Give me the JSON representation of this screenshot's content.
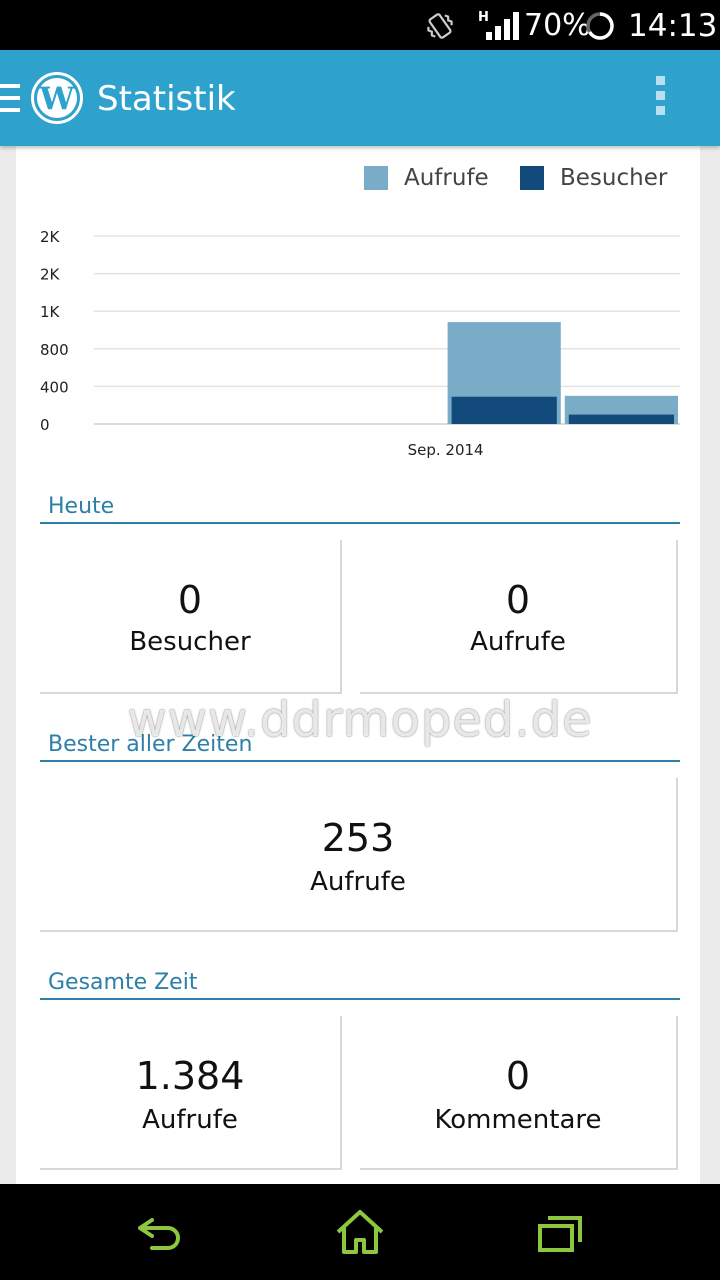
{
  "status_bar": {
    "network_label": "H",
    "battery": "70%",
    "time": "14:13"
  },
  "app_bar": {
    "title": "Statistik"
  },
  "chart_data": {
    "type": "bar",
    "categories": [
      "",
      "",
      "",
      "Sep. 2014",
      ""
    ],
    "x_tick_labels": [
      "Sep. 2014"
    ],
    "y_tick_labels": [
      "0",
      "400",
      "800",
      "1K",
      "2K",
      "2K"
    ],
    "series": [
      {
        "name": "Aufrufe",
        "values": [
          0,
          0,
          0,
          1084,
          300
        ],
        "color": "#7aabc7"
      },
      {
        "name": "Besucher",
        "values": [
          0,
          0,
          0,
          290,
          100
        ],
        "color": "#134a7c"
      }
    ],
    "ylim": [
      0,
      2000
    ],
    "grid": true,
    "legend": "top-right"
  },
  "sections": {
    "today": {
      "title": "Heute",
      "stats": [
        {
          "value": "0",
          "label": "Besucher"
        },
        {
          "value": "0",
          "label": "Aufrufe"
        }
      ]
    },
    "best": {
      "title": "Bester aller Zeiten",
      "stat": {
        "value": "253",
        "label": "Aufrufe"
      }
    },
    "alltime": {
      "title": "Gesamte Zeit",
      "stats": [
        {
          "value": "1.384",
          "label": "Aufrufe"
        },
        {
          "value": "0",
          "label": "Kommentare"
        }
      ]
    }
  },
  "watermark": "www.ddrmoped.de",
  "nav_icons": [
    "back-icon",
    "home-icon",
    "recent-apps-icon"
  ],
  "colors": {
    "accent": "#2ea2cc",
    "section": "#2c7fa8",
    "nav_icon": "#8dc63f"
  }
}
